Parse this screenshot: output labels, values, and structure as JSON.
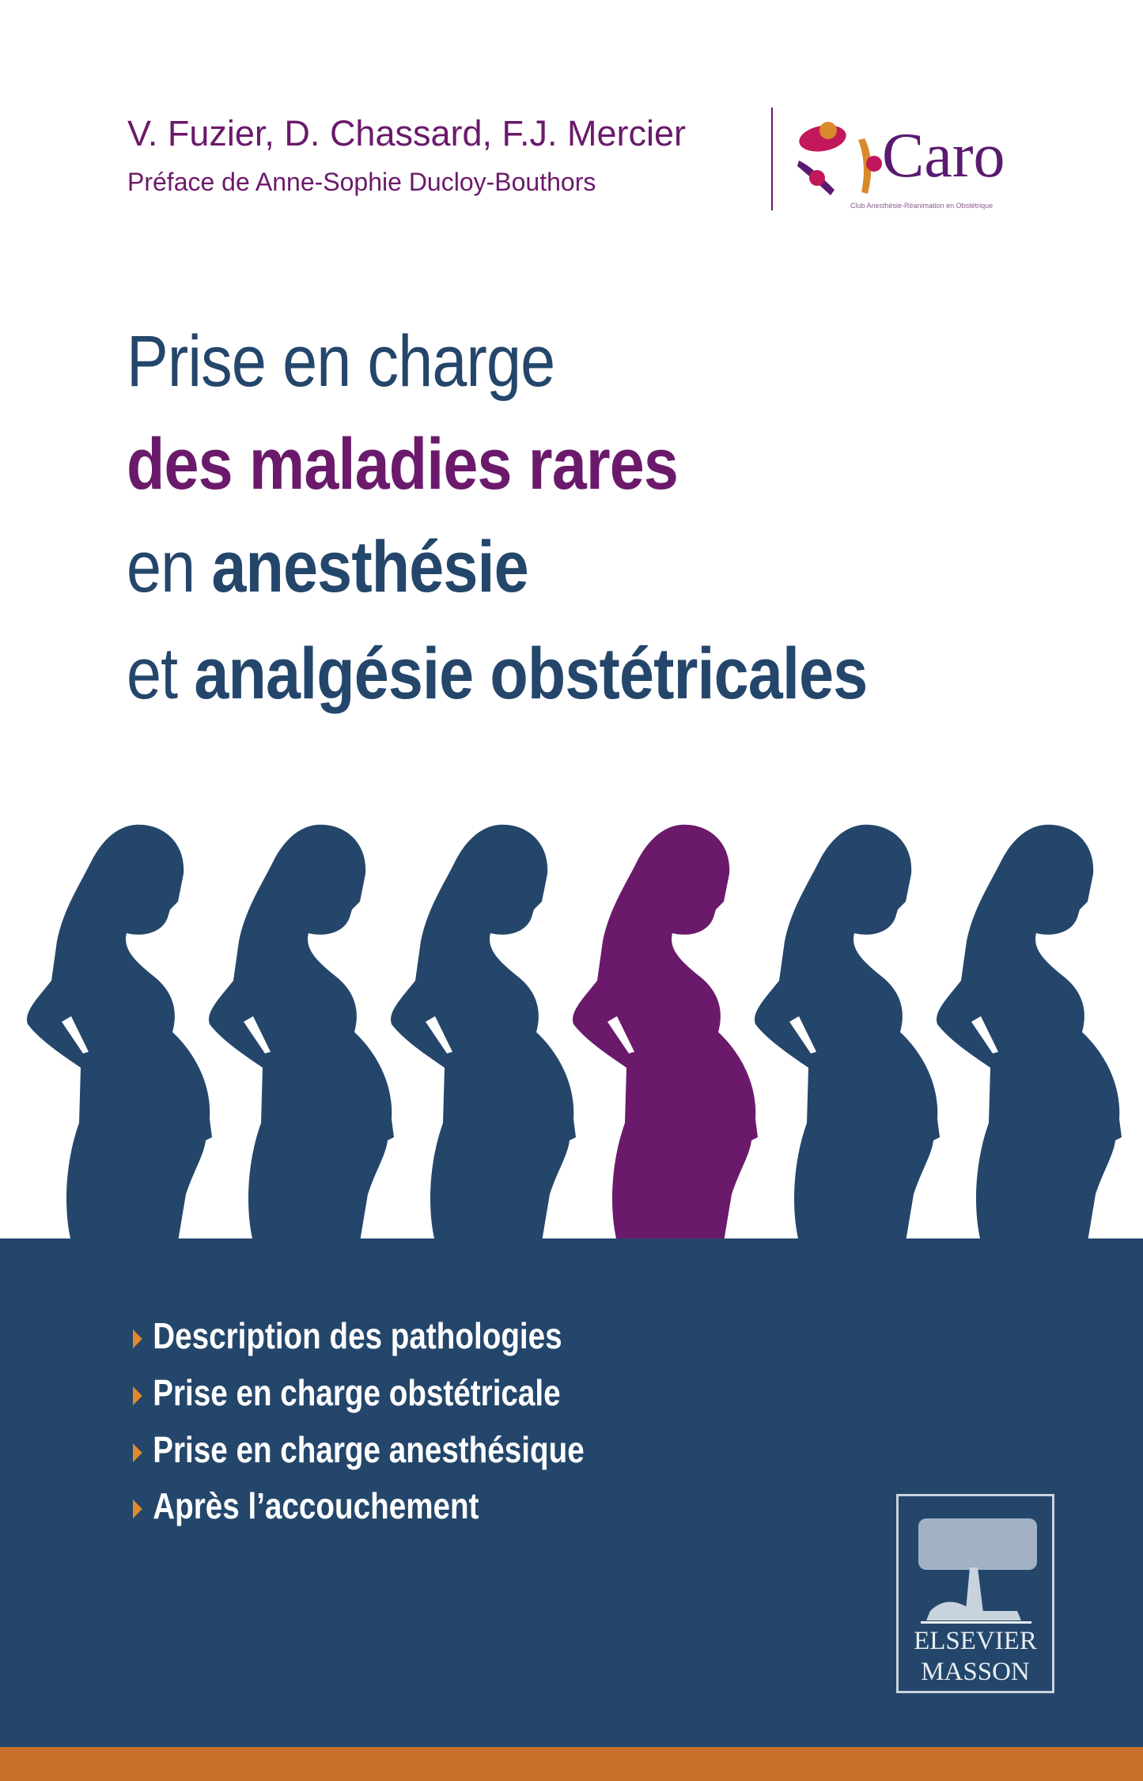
{
  "authors": "V. Fuzier, D. Chassard, F.J. Mercier",
  "preface": "Préface de Anne-Sophie Ducloy-Bouthors",
  "partner_logo": {
    "name": "Caro",
    "tagline": "Club Anesthésie-Réanimation en Obstétrique"
  },
  "title": {
    "line1": "Prise en charge",
    "line2": "des maladies rares",
    "line3_prefix": "en ",
    "line3_bold": "anesthésie",
    "line4_prefix": "et ",
    "line4_bold": "analgésie obstétricales"
  },
  "bullets": [
    "Description des pathologies",
    "Prise en charge obstétricale",
    "Prise en charge anesthésique",
    "Après l’accouchement"
  ],
  "publisher": {
    "line1": "ELSEVIER",
    "line2": "MASSON"
  },
  "colors": {
    "navy": "#24466b",
    "purple": "#6b1a6b",
    "orange": "#c8702a",
    "bullet": "#e08a2c"
  },
  "figures": {
    "count": 6,
    "highlighted_index": 3
  }
}
